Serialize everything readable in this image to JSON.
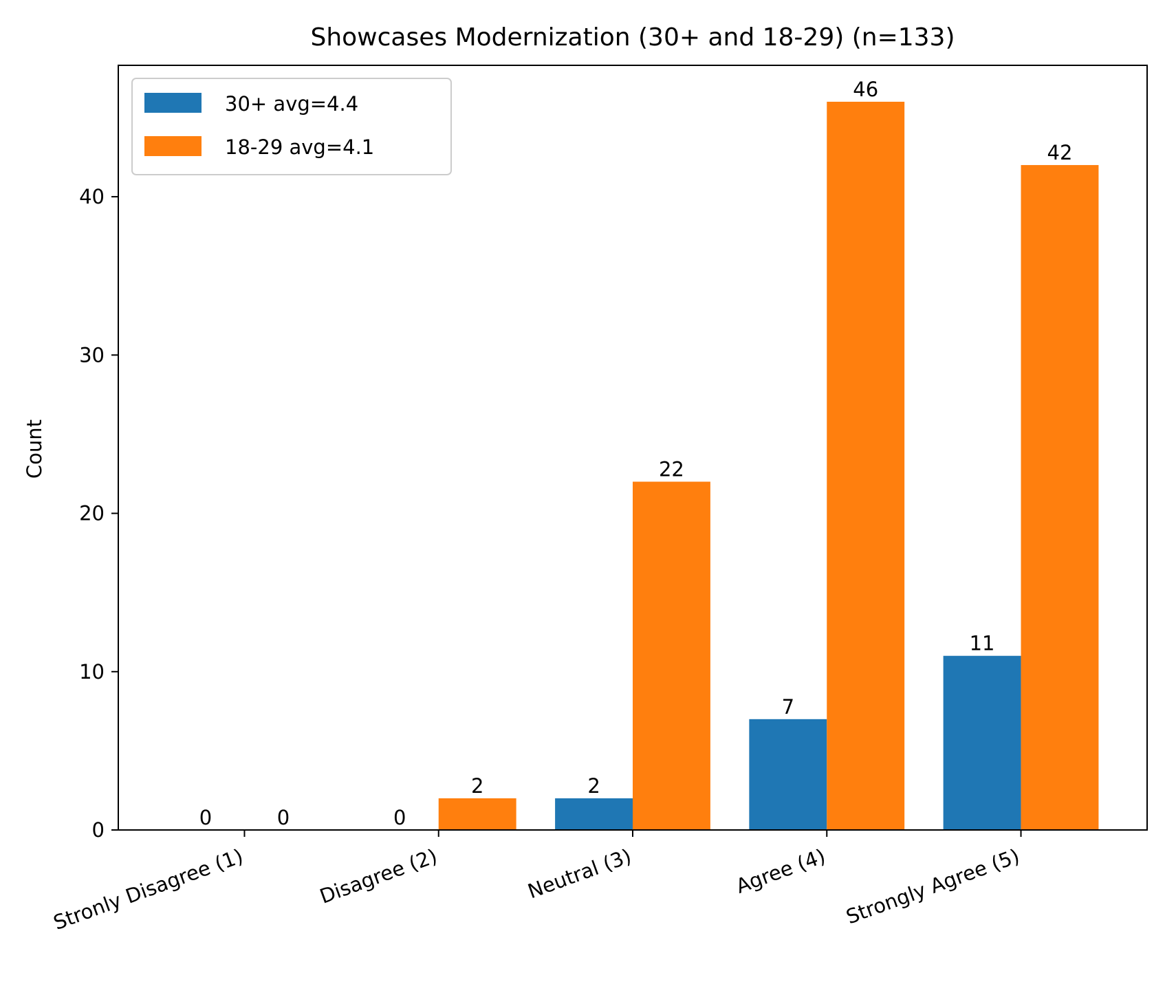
{
  "chart_data": {
    "type": "bar",
    "title": "Showcases Modernization (30+ and 18-29) (n=133)",
    "xlabel": "",
    "ylabel": "Count",
    "categories": [
      "Stronly Disagree (1)",
      "Disagree (2)",
      "Neutral (3)",
      "Agree (4)",
      "Strongly Agree (5)"
    ],
    "series": [
      {
        "name": "30+ avg=4.4",
        "values": [
          0,
          0,
          2,
          7,
          11
        ],
        "color": "#1f77b4"
      },
      {
        "name": "18-29 avg=4.1",
        "values": [
          0,
          2,
          22,
          46,
          42
        ],
        "color": "#ff7f0e"
      }
    ],
    "ylim": [
      0,
      48.3
    ],
    "yticks": [
      0,
      10,
      20,
      30,
      40
    ],
    "grid": false,
    "legend_position": "top-left"
  }
}
